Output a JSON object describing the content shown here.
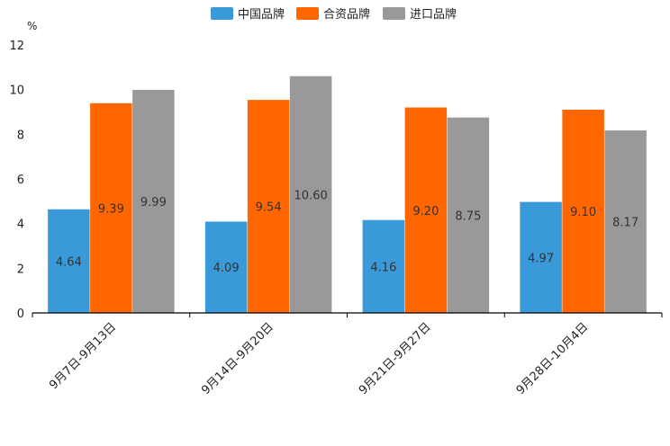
{
  "chart_data": {
    "type": "bar",
    "title": "",
    "ylabel": "%",
    "xlabel": "",
    "ylim": [
      0,
      12
    ],
    "yticks": [
      "0",
      "2",
      "4",
      "6",
      "8",
      "10",
      "12"
    ],
    "categories": [
      "9月7日-9月13日",
      "9月14日-9月20日",
      "9月21日-9月27日",
      "9月28日-10月4日"
    ],
    "series": [
      {
        "name": "中国品牌",
        "color": "#3a9ad9",
        "values": [
          4.64,
          4.09,
          4.16,
          4.97
        ],
        "labels": [
          "4.64",
          "4.09",
          "4.16",
          "4.97"
        ]
      },
      {
        "name": "合资品牌",
        "color": "#ff6600",
        "values": [
          9.39,
          9.54,
          9.2,
          9.1
        ],
        "labels": [
          "9.39",
          "9.54",
          "9.20",
          "9.10"
        ]
      },
      {
        "name": "进口品牌",
        "color": "#999999",
        "values": [
          9.99,
          10.6,
          8.75,
          8.17
        ],
        "labels": [
          "9.99",
          "10.60",
          "8.75",
          "8.17"
        ]
      }
    ],
    "legend_position": "top-center"
  }
}
